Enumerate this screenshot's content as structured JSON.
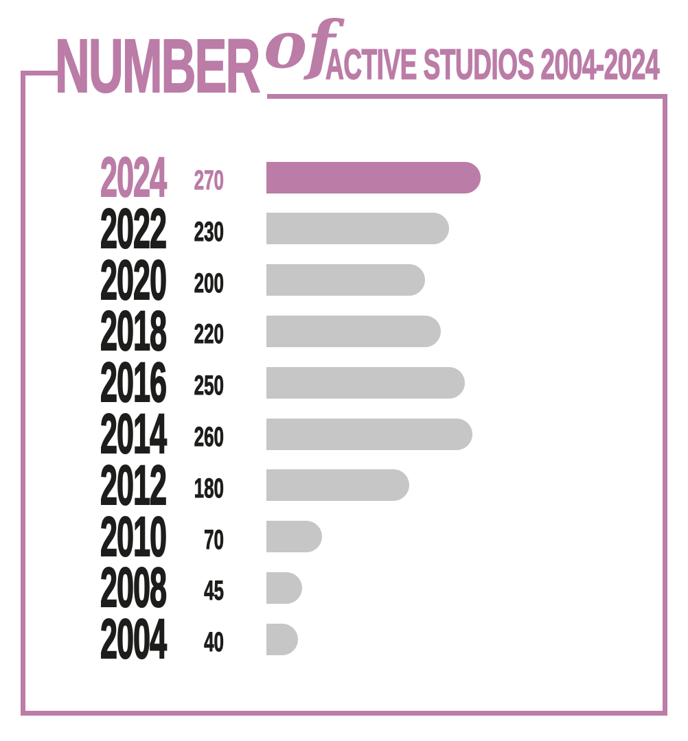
{
  "title": {
    "word1": "NUMBER",
    "word2": "of",
    "word3": "ACTIVE STUDIOS 2004-2024",
    "full": "NUMBER of ACTIVE STUDIOS 2004-2024"
  },
  "colors": {
    "accent": "#bb7ca7",
    "bar_gray": "#c6c6c6",
    "text_dark": "#1d1d1b",
    "background": "#ffffff"
  },
  "chart_data": {
    "type": "bar",
    "orientation": "horizontal",
    "title": "NUMBER of ACTIVE STUDIOS 2004-2024",
    "categories": [
      "2024",
      "2022",
      "2020",
      "2018",
      "2016",
      "2014",
      "2012",
      "2010",
      "2008",
      "2004"
    ],
    "values": [
      270,
      230,
      200,
      220,
      250,
      260,
      180,
      70,
      45,
      40
    ],
    "highlight_category": "2024",
    "value_labels_shown": true,
    "axis_shown": false,
    "grid": false,
    "legend": false,
    "xlim": [
      0,
      280
    ]
  }
}
